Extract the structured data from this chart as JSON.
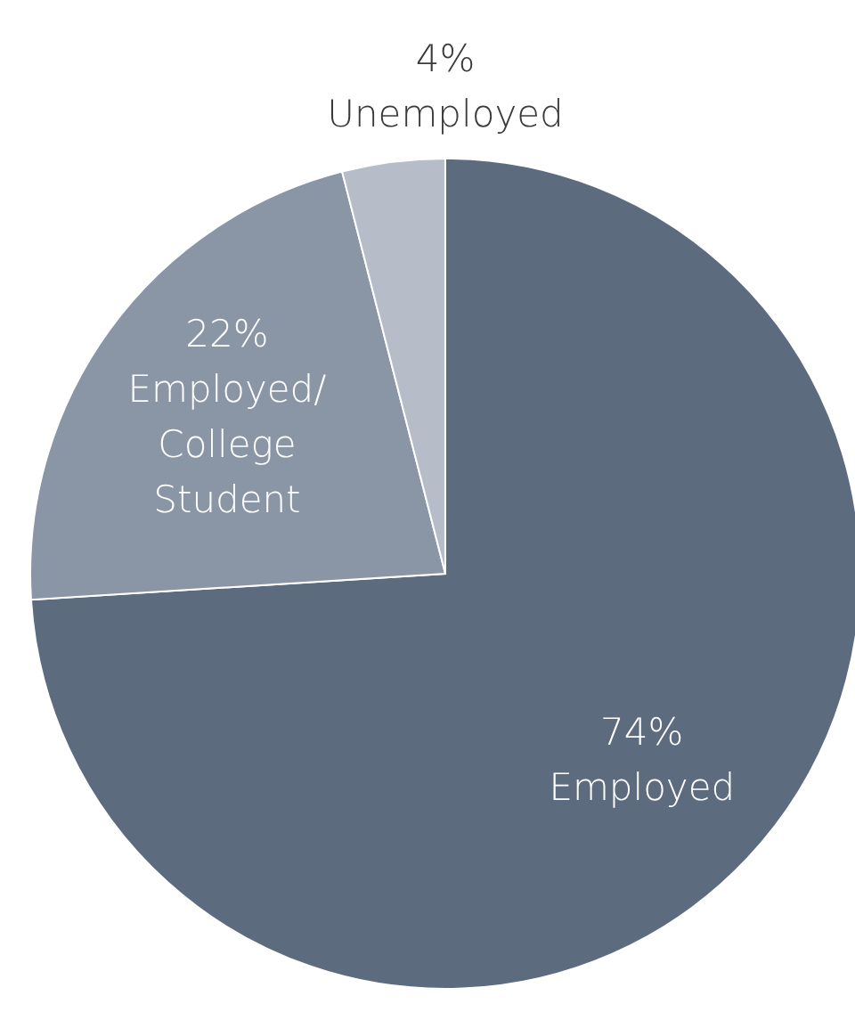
{
  "chart_data": {
    "type": "pie",
    "categories": [
      "Employed",
      "Employed/ College Student",
      "Unemployed"
    ],
    "values": [
      74,
      22,
      4
    ],
    "colors": [
      "#5d6b7f",
      "#8a95a6",
      "#b6bdc9"
    ],
    "value_labels": [
      "74%",
      "22%",
      "4%"
    ]
  }
}
